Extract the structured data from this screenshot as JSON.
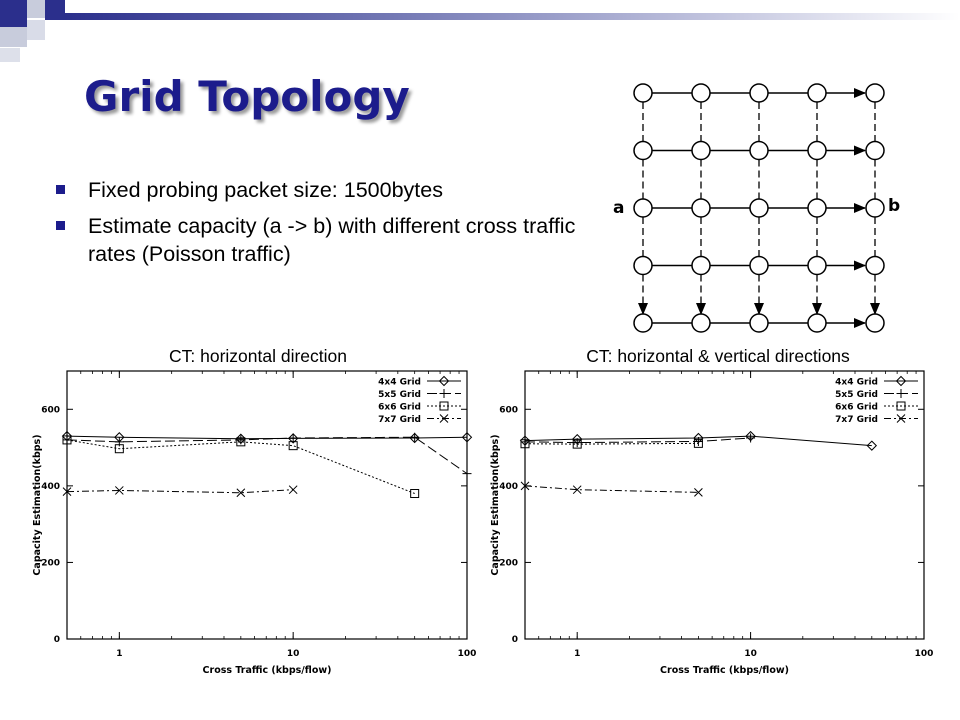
{
  "slide": {
    "title": "Grid Topology",
    "bullets": [
      "Fixed probing packet size: 1500bytes",
      "Estimate capacity (a -> b) with different cross traffic rates (Poisson traffic)"
    ]
  },
  "topology": {
    "label_a": "a",
    "label_b": "b",
    "rows": 5,
    "cols": 5
  },
  "colors": {
    "title": "#1c1c8c",
    "bullet": "#1c1c8c",
    "deco_dark": "#2b2f8c",
    "deco_light": "#c8ccdc"
  },
  "chart_data": [
    {
      "type": "line",
      "title": "CT: horizontal direction",
      "xlabel": "Cross Traffic (kbps/flow)",
      "ylabel": "Capacity Estimation(kbps)",
      "xscale": "log",
      "xlim": [
        0.5,
        100
      ],
      "ylim": [
        0,
        700
      ],
      "xticks": [
        1,
        10,
        100
      ],
      "xtick_labels": [
        "1",
        "10",
        "100"
      ],
      "yticks": [
        0,
        200,
        400,
        600
      ],
      "ytick_labels": [
        "0",
        "200",
        "400",
        "600"
      ],
      "legend_position": "top-right",
      "series": [
        {
          "name": "4x4 Grid",
          "marker": "diamond",
          "dash": "solid",
          "x": [
            0.5,
            1,
            5,
            10,
            50,
            100
          ],
          "y": [
            530,
            527,
            523,
            524,
            525,
            527
          ]
        },
        {
          "name": "5x5 Grid",
          "marker": "plus",
          "dash": "longdash",
          "x": [
            0.5,
            1,
            5,
            10,
            50,
            100
          ],
          "y": [
            520,
            515,
            520,
            525,
            527,
            432
          ]
        },
        {
          "name": "6x6 Grid",
          "marker": "square",
          "dash": "dotted",
          "x": [
            0.5,
            1,
            5,
            10,
            50
          ],
          "y": [
            520,
            497,
            515,
            505,
            380
          ]
        },
        {
          "name": "7x7 Grid",
          "marker": "cross",
          "dash": "dashdot",
          "x": [
            0.5,
            1,
            5,
            10
          ],
          "y": [
            385,
            388,
            382,
            390
          ]
        }
      ]
    },
    {
      "type": "line",
      "title": "CT: horizontal & vertical directions",
      "xlabel": "Cross Traffic (kbps/flow)",
      "ylabel": "Capacity Estimation(kbps)",
      "xscale": "log",
      "xlim": [
        0.5,
        100
      ],
      "ylim": [
        0,
        700
      ],
      "xticks": [
        1,
        10,
        100
      ],
      "xtick_labels": [
        "1",
        "10",
        "100"
      ],
      "yticks": [
        0,
        200,
        400,
        600
      ],
      "ytick_labels": [
        "0",
        "200",
        "400",
        "600"
      ],
      "legend_position": "top-right",
      "series": [
        {
          "name": "4x4 Grid",
          "marker": "diamond",
          "dash": "solid",
          "x": [
            0.5,
            1,
            5,
            10,
            50
          ],
          "y": [
            518,
            522,
            525,
            530,
            505
          ]
        },
        {
          "name": "5x5 Grid",
          "marker": "plus",
          "dash": "longdash",
          "x": [
            0.5,
            1,
            5,
            10
          ],
          "y": [
            515,
            513,
            516,
            525
          ]
        },
        {
          "name": "6x6 Grid",
          "marker": "square",
          "dash": "dotted",
          "x": [
            0.5,
            1,
            5
          ],
          "y": [
            510,
            509,
            511
          ]
        },
        {
          "name": "7x7 Grid",
          "marker": "cross",
          "dash": "dashdot",
          "x": [
            0.5,
            1,
            5
          ],
          "y": [
            400,
            390,
            383
          ]
        }
      ]
    }
  ]
}
